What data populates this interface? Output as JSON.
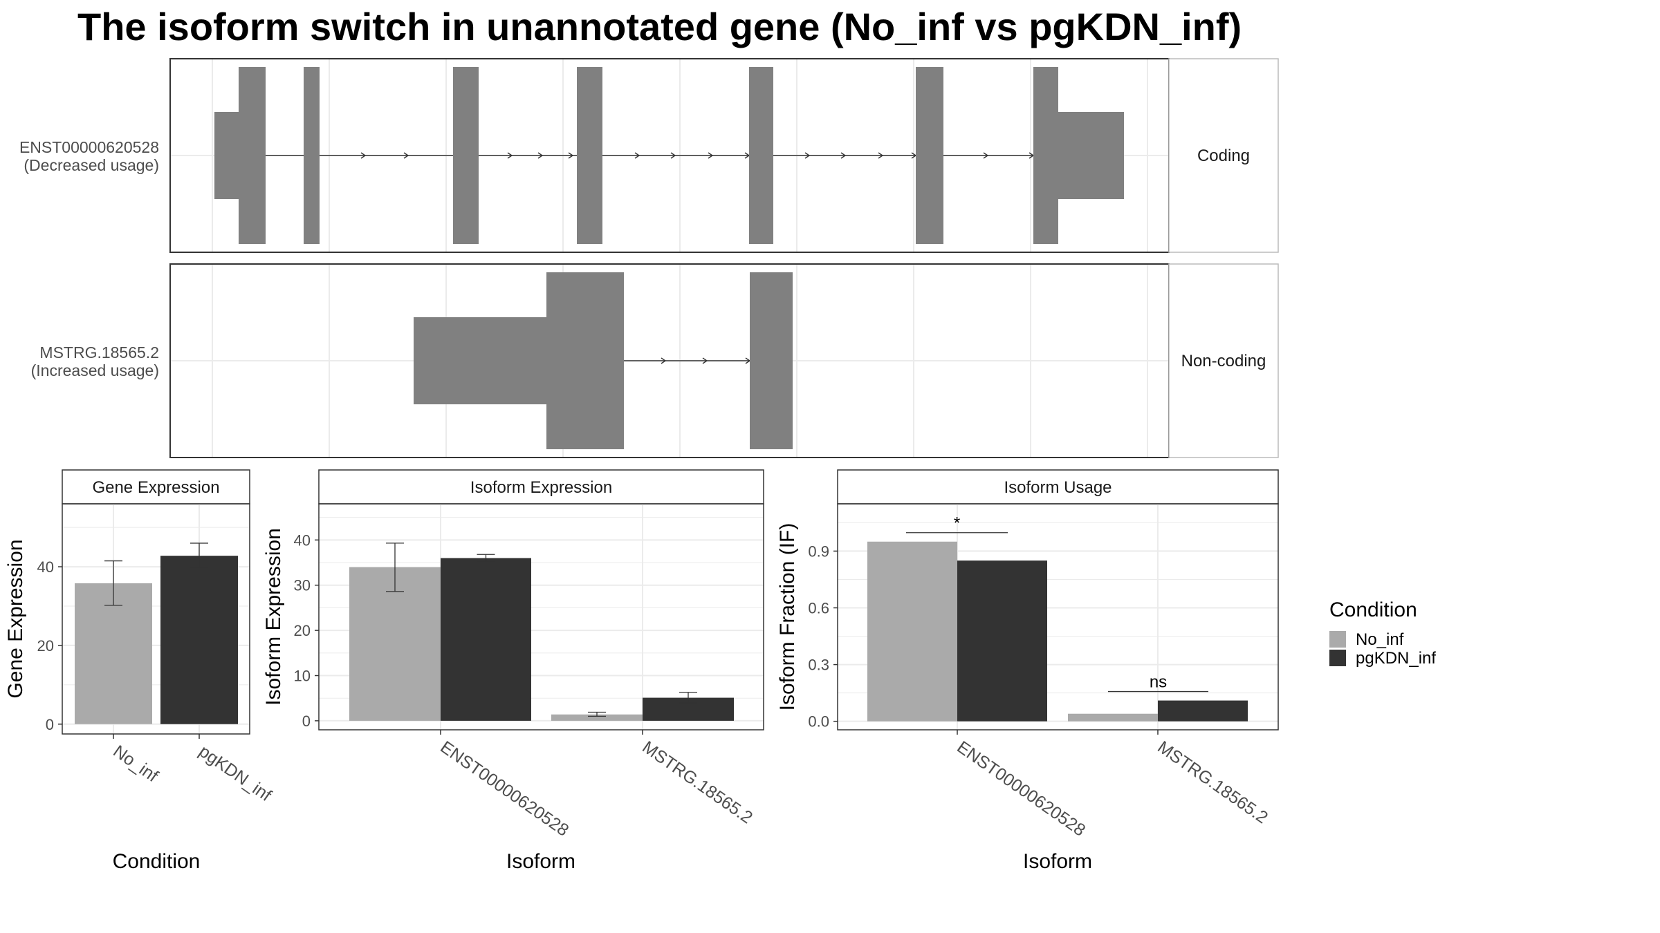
{
  "title": "The isoform switch in unannotated gene (No_inf vs pgKDN_inf)",
  "transcripts": [
    {
      "id": "ENST00000620528",
      "usage": "(Decreased usage)",
      "type": "Coding"
    },
    {
      "id": "MSTRG.18565.2",
      "usage": "(Increased usage)",
      "type": "Non-coding"
    }
  ],
  "legend": {
    "title": "Condition",
    "items": [
      {
        "label": "No_inf",
        "color": "#aaaaaa"
      },
      {
        "label": "pgKDN_inf",
        "color": "#333333"
      }
    ]
  },
  "colors": {
    "exon": "#808080",
    "no_inf": "#aaaaaa",
    "pgkdn_inf": "#333333"
  },
  "chart_data": [
    {
      "type": "bar",
      "panel": "Gene Expression",
      "xlabel": "Condition",
      "ylabel": "Gene Expression",
      "categories": [
        "No_inf",
        "pgKDN_inf"
      ],
      "values": [
        35.8,
        42.8
      ],
      "error_low": [
        30.2,
        39.6
      ],
      "error_high": [
        41.5,
        46.0
      ],
      "yticks": [
        0,
        20,
        40
      ],
      "ylim": [
        -2.5,
        56
      ]
    },
    {
      "type": "bar",
      "panel": "Isoform Expression",
      "xlabel": "Isoform",
      "ylabel": "Isoform Expression",
      "categories": [
        "ENST00000620528",
        "MSTRG.18565.2"
      ],
      "series": [
        {
          "name": "No_inf",
          "values": [
            34.0,
            1.4
          ],
          "error_low": [
            28.6,
            1.0
          ],
          "error_high": [
            39.3,
            1.9
          ]
        },
        {
          "name": "pgKDN_inf",
          "values": [
            36.0,
            5.1
          ],
          "error_low": [
            35.1,
            4.0
          ],
          "error_high": [
            36.8,
            6.3
          ]
        }
      ],
      "yticks": [
        0,
        10,
        20,
        30,
        40
      ],
      "ylim": [
        -2,
        48
      ]
    },
    {
      "type": "bar",
      "panel": "Isoform Usage",
      "xlabel": "Isoform",
      "ylabel": "Isoform Fraction (IF)",
      "categories": [
        "ENST00000620528",
        "MSTRG.18565.2"
      ],
      "series": [
        {
          "name": "No_inf",
          "values": [
            0.95,
            0.04
          ]
        },
        {
          "name": "pgKDN_inf",
          "values": [
            0.85,
            0.11
          ]
        }
      ],
      "significance": [
        "*",
        "ns"
      ],
      "yticks": [
        "0.0",
        "0.3",
        "0.6",
        "0.9"
      ],
      "ylim": [
        -0.045,
        1.15
      ]
    }
  ]
}
